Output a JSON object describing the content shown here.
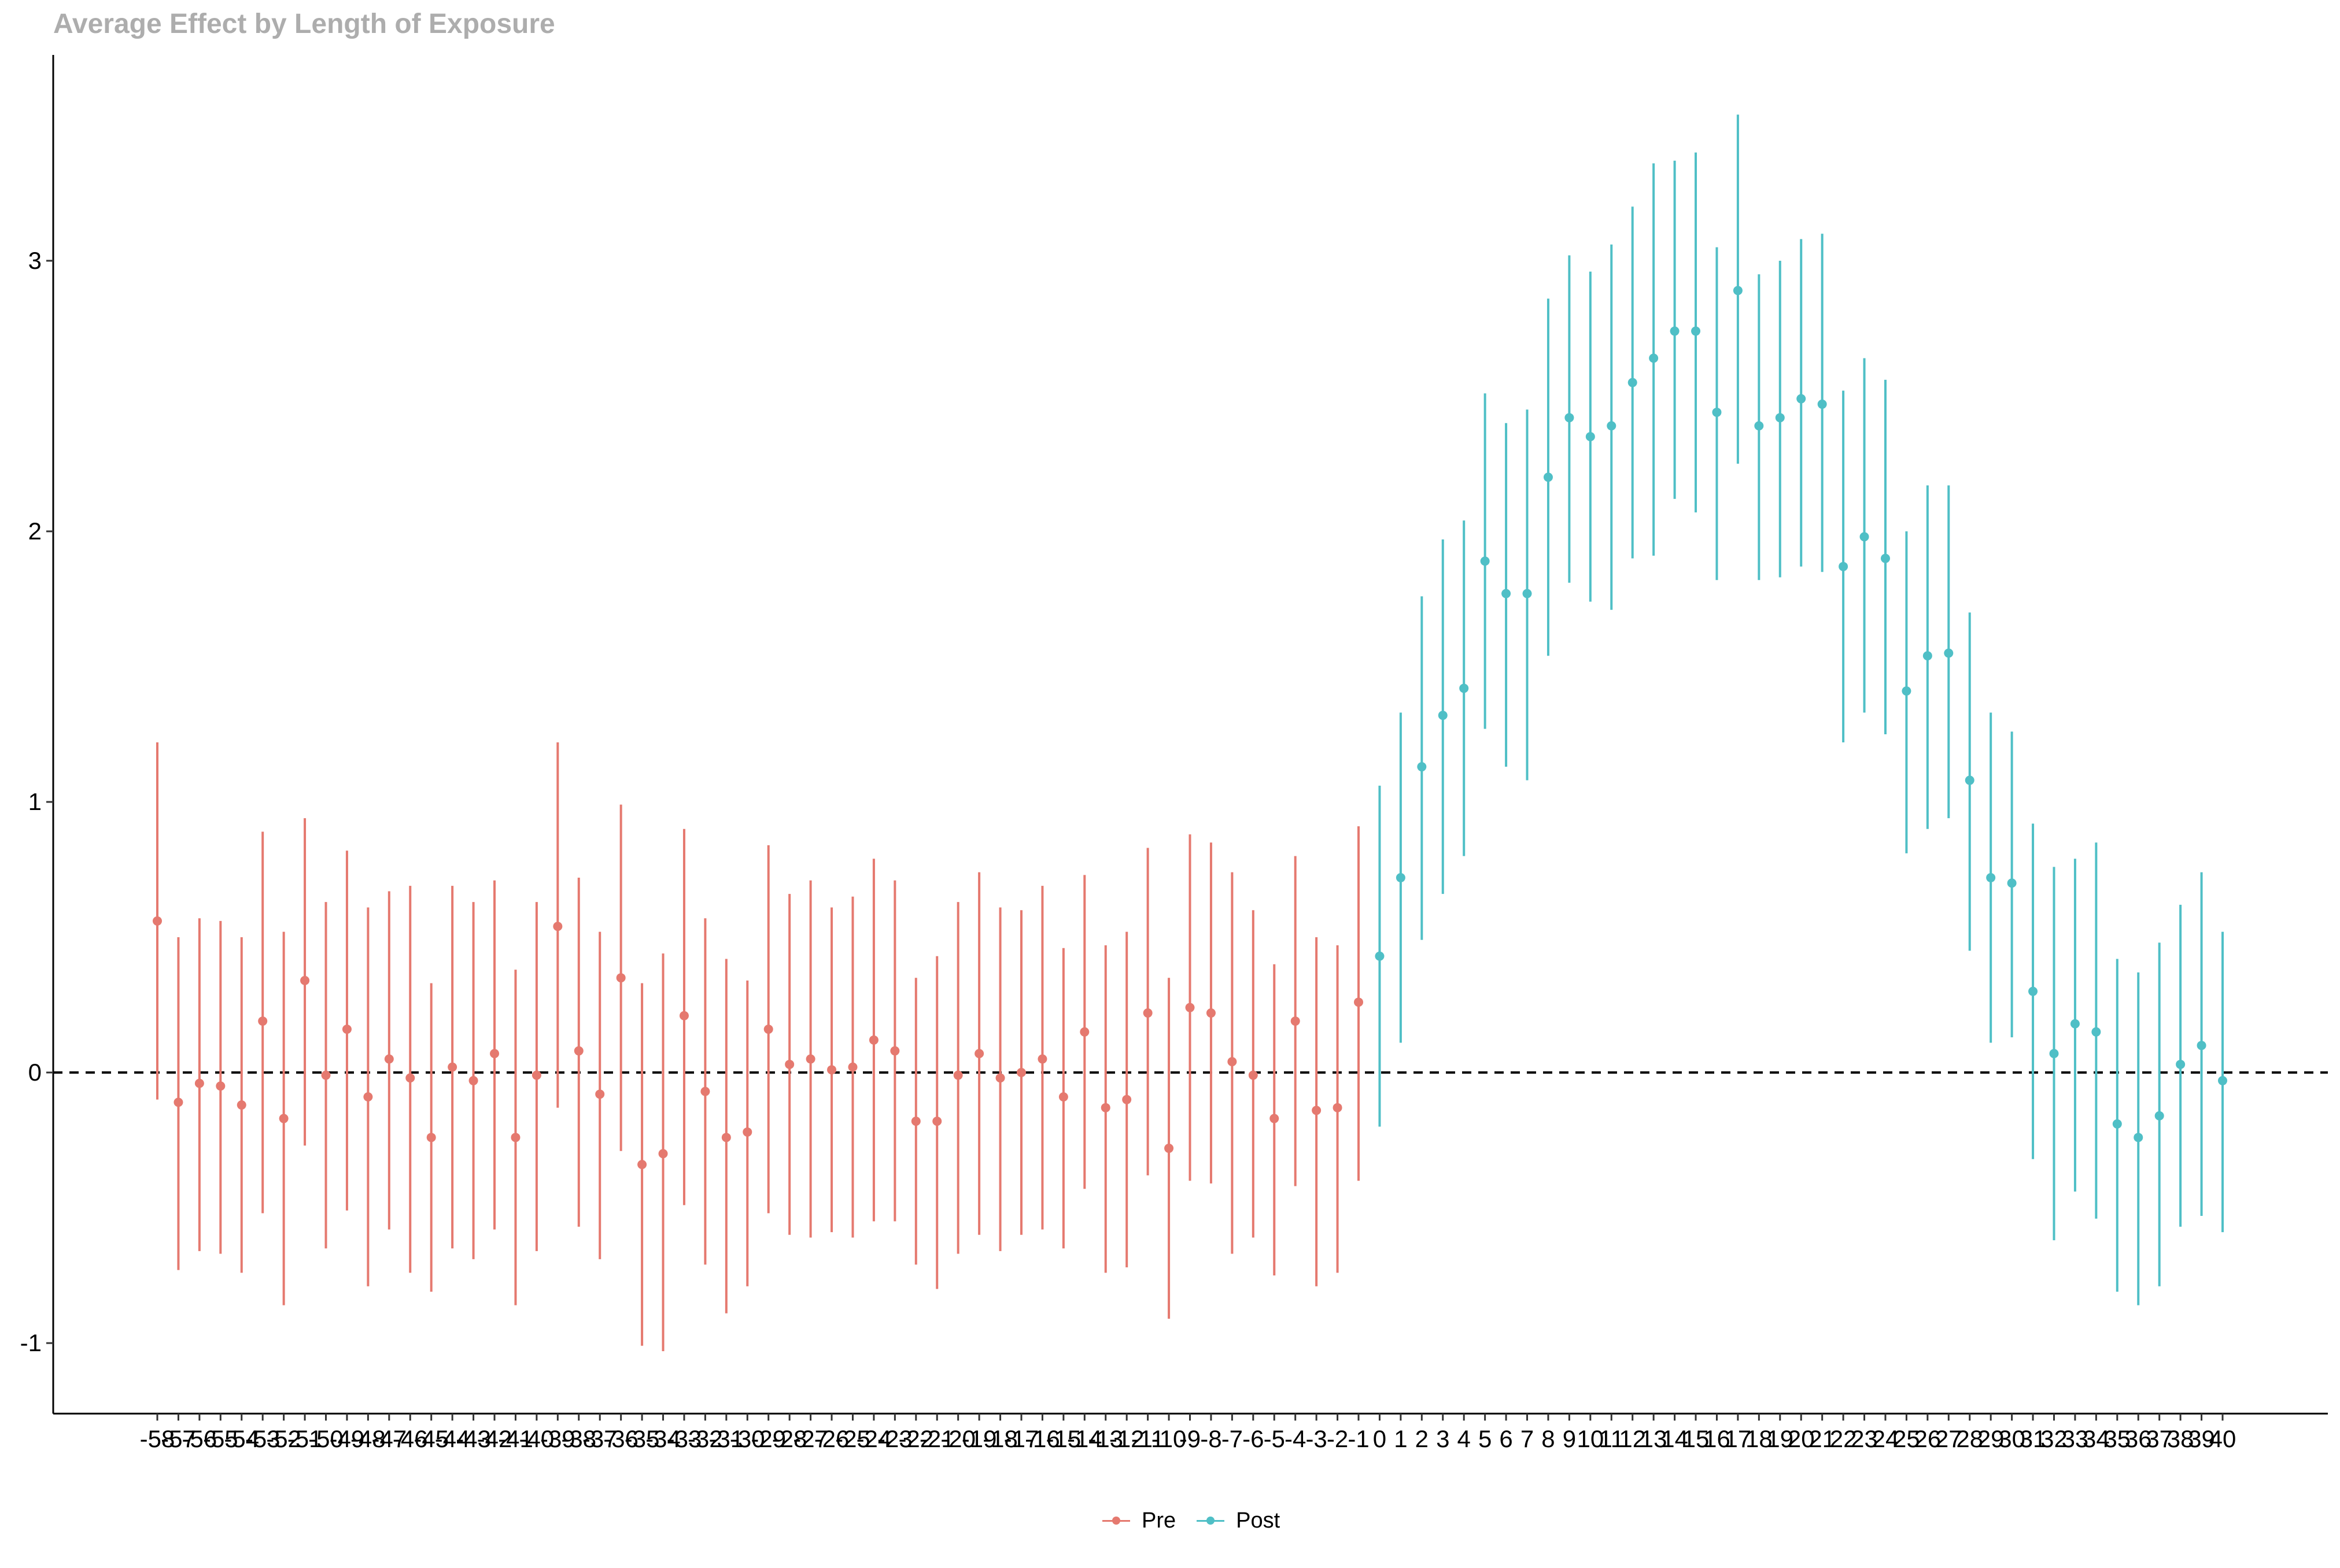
{
  "chart_data": {
    "type": "scatter",
    "subtype": "pointrange",
    "title": "Average Effect by Length of Exposure",
    "xlabel": "",
    "ylabel": "",
    "ylim": [
      -1.25,
      3.75
    ],
    "yticks": [
      -1,
      0,
      1,
      2,
      3
    ],
    "reference_line": {
      "y": 0,
      "style": "dashed",
      "color": "#000000"
    },
    "grid": false,
    "legend_position": "bottom",
    "colors": {
      "Pre": "#E5796F",
      "Post": "#4FBFC6"
    },
    "series": [
      {
        "name": "Pre",
        "x": [
          -58,
          -57,
          -56,
          -55,
          -54,
          -53,
          -52,
          -51,
          -50,
          -49,
          -48,
          -47,
          -46,
          -45,
          -44,
          -43,
          -42,
          -41,
          -40,
          -39,
          -38,
          -37,
          -36,
          -35,
          -34,
          -33,
          -32,
          -31,
          -30,
          -29,
          -28,
          -27,
          -26,
          -25,
          -24,
          -23,
          -22,
          -21,
          -20,
          -19,
          -18,
          -17,
          -16,
          -15,
          -14,
          -13,
          -12,
          -11,
          -10,
          -9,
          -8,
          -7,
          -6,
          -5,
          -4,
          -3,
          -2,
          -1
        ],
        "y": [
          0.56,
          -0.11,
          -0.04,
          -0.05,
          -0.12,
          0.19,
          -0.17,
          0.34,
          -0.01,
          0.16,
          -0.09,
          0.05,
          -0.02,
          -0.24,
          0.02,
          -0.03,
          0.07,
          -0.24,
          -0.01,
          0.54,
          0.08,
          -0.08,
          0.35,
          -0.34,
          -0.3,
          0.21,
          -0.07,
          -0.24,
          -0.22,
          0.16,
          0.03,
          0.05,
          0.01,
          0.02,
          0.12,
          0.08,
          -0.18,
          -0.18,
          -0.01,
          0.07,
          -0.02,
          0.0,
          0.05,
          -0.09,
          0.15,
          -0.13,
          -0.1,
          0.22,
          -0.28,
          0.24,
          0.22,
          0.04,
          -0.01,
          -0.17,
          0.19,
          -0.14,
          -0.13,
          0.26
        ],
        "lower": [
          -0.1,
          -0.73,
          -0.66,
          -0.67,
          -0.74,
          -0.52,
          -0.86,
          -0.27,
          -0.65,
          -0.51,
          -0.79,
          -0.58,
          -0.74,
          -0.81,
          -0.65,
          -0.69,
          -0.58,
          -0.86,
          -0.66,
          -0.13,
          -0.57,
          -0.69,
          -0.29,
          -1.01,
          -1.03,
          -0.49,
          -0.71,
          -0.89,
          -0.79,
          -0.52,
          -0.6,
          -0.61,
          -0.59,
          -0.61,
          -0.55,
          -0.55,
          -0.71,
          -0.8,
          -0.67,
          -0.6,
          -0.66,
          -0.6,
          -0.58,
          -0.65,
          -0.43,
          -0.74,
          -0.72,
          -0.38,
          -0.91,
          -0.4,
          -0.41,
          -0.67,
          -0.61,
          -0.75,
          -0.42,
          -0.79,
          -0.74,
          -0.4
        ],
        "upper": [
          1.22,
          0.5,
          0.57,
          0.56,
          0.5,
          0.89,
          0.52,
          0.94,
          0.63,
          0.82,
          0.61,
          0.67,
          0.69,
          0.33,
          0.69,
          0.63,
          0.71,
          0.38,
          0.63,
          1.22,
          0.72,
          0.52,
          0.99,
          0.33,
          0.44,
          0.9,
          0.57,
          0.42,
          0.34,
          0.84,
          0.66,
          0.71,
          0.61,
          0.65,
          0.79,
          0.71,
          0.35,
          0.43,
          0.63,
          0.74,
          0.61,
          0.6,
          0.69,
          0.46,
          0.73,
          0.47,
          0.52,
          0.83,
          0.35,
          0.88,
          0.85,
          0.74,
          0.6,
          0.4,
          0.8,
          0.5,
          0.47,
          0.91
        ]
      },
      {
        "name": "Post",
        "x": [
          0,
          1,
          2,
          3,
          4,
          5,
          6,
          7,
          8,
          9,
          10,
          11,
          12,
          13,
          14,
          15,
          16,
          17,
          18,
          19,
          20,
          21,
          22,
          23,
          24,
          25,
          26,
          27,
          28,
          29,
          30,
          31,
          32,
          33,
          34,
          35,
          36,
          37,
          38,
          39,
          40
        ],
        "y": [
          0.43,
          0.72,
          1.13,
          1.32,
          1.42,
          1.89,
          1.77,
          1.77,
          2.2,
          2.42,
          2.35,
          2.39,
          2.55,
          2.64,
          2.74,
          2.74,
          2.44,
          2.89,
          2.39,
          2.42,
          2.49,
          2.47,
          1.87,
          1.98,
          1.9,
          1.41,
          1.54,
          1.55,
          1.08,
          0.72,
          0.7,
          0.3,
          0.07,
          0.18,
          0.15,
          -0.19,
          -0.24,
          -0.16,
          0.03,
          0.1,
          -0.03
        ],
        "lower": [
          -0.2,
          0.11,
          0.49,
          0.66,
          0.8,
          1.27,
          1.13,
          1.08,
          1.54,
          1.81,
          1.74,
          1.71,
          1.9,
          1.91,
          2.12,
          2.07,
          1.82,
          2.25,
          1.82,
          1.83,
          1.87,
          1.85,
          1.22,
          1.33,
          1.25,
          0.81,
          0.9,
          0.94,
          0.45,
          0.11,
          0.13,
          -0.32,
          -0.62,
          -0.44,
          -0.54,
          -0.81,
          -0.86,
          -0.79,
          -0.57,
          -0.53,
          -0.59
        ],
        "upper": [
          1.06,
          1.33,
          1.76,
          1.97,
          2.04,
          2.51,
          2.4,
          2.45,
          2.86,
          3.02,
          2.96,
          3.06,
          3.2,
          3.36,
          3.37,
          3.4,
          3.05,
          3.54,
          2.95,
          3.0,
          3.08,
          3.1,
          2.52,
          2.64,
          2.56,
          2.0,
          2.17,
          2.17,
          1.7,
          1.33,
          1.26,
          0.92,
          0.76,
          0.79,
          0.85,
          0.42,
          0.37,
          0.48,
          0.62,
          0.74,
          0.52
        ]
      }
    ]
  }
}
